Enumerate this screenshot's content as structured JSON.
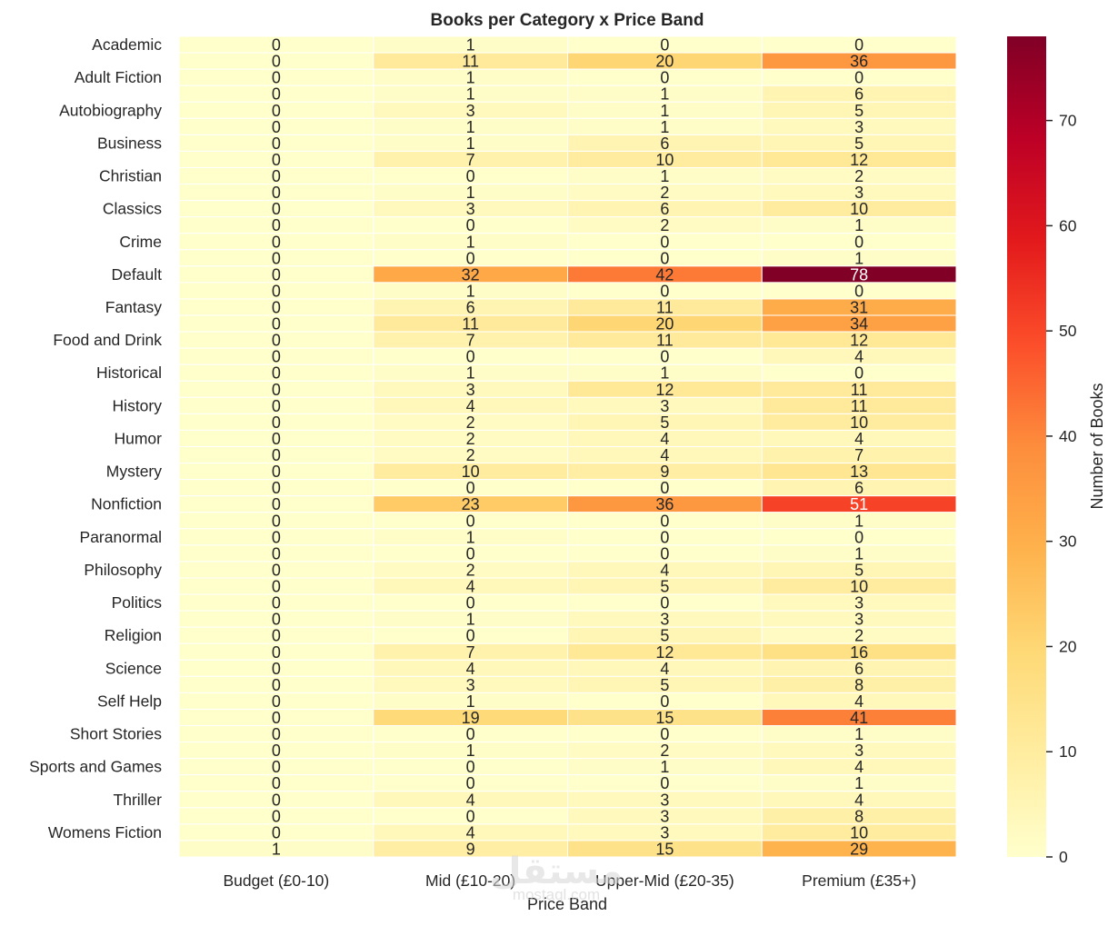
{
  "chart_data": {
    "type": "heatmap",
    "title": "Books per Category x Price Band",
    "xlabel": "Price Band",
    "ylabel": "",
    "colorbar_label": "Number of Books",
    "colormap": "YlOrRd",
    "value_range": [
      0,
      78
    ],
    "colorbar_ticks": [
      0,
      10,
      20,
      30,
      40,
      50,
      60,
      70
    ],
    "x_categories": [
      "Budget (£0-10)",
      "Mid (£10-20)",
      "Upper-Mid (£20-35)",
      "Premium (£35+)"
    ],
    "y_tick_labels": [
      "Academic",
      "",
      "Adult Fiction",
      "",
      "Autobiography",
      "",
      "Business",
      "",
      "Christian",
      "",
      "Classics",
      "",
      "Crime",
      "",
      "Default",
      "",
      "Fantasy",
      "",
      "Food and Drink",
      "",
      "Historical",
      "",
      "History",
      "",
      "Humor",
      "",
      "Mystery",
      "",
      "Nonfiction",
      "",
      "Paranormal",
      "",
      "Philosophy",
      "",
      "Politics",
      "",
      "Religion",
      "",
      "Science",
      "",
      "Self Help",
      "",
      "Short Stories",
      "",
      "Sports and Games",
      "",
      "Thriller",
      "",
      "Womens Fiction",
      ""
    ],
    "values": [
      [
        0,
        1,
        0,
        0
      ],
      [
        0,
        11,
        20,
        36
      ],
      [
        0,
        1,
        0,
        0
      ],
      [
        0,
        1,
        1,
        6
      ],
      [
        0,
        3,
        1,
        5
      ],
      [
        0,
        1,
        1,
        3
      ],
      [
        0,
        1,
        6,
        5
      ],
      [
        0,
        7,
        10,
        12
      ],
      [
        0,
        0,
        1,
        2
      ],
      [
        0,
        1,
        2,
        3
      ],
      [
        0,
        3,
        6,
        10
      ],
      [
        0,
        0,
        2,
        1
      ],
      [
        0,
        1,
        0,
        0
      ],
      [
        0,
        0,
        0,
        1
      ],
      [
        0,
        32,
        42,
        78
      ],
      [
        0,
        1,
        0,
        0
      ],
      [
        0,
        6,
        11,
        31
      ],
      [
        0,
        11,
        20,
        34
      ],
      [
        0,
        7,
        11,
        12
      ],
      [
        0,
        0,
        0,
        4
      ],
      [
        0,
        1,
        1,
        0
      ],
      [
        0,
        3,
        12,
        11
      ],
      [
        0,
        4,
        3,
        11
      ],
      [
        0,
        2,
        5,
        10
      ],
      [
        0,
        2,
        4,
        4
      ],
      [
        0,
        2,
        4,
        7
      ],
      [
        0,
        10,
        9,
        13
      ],
      [
        0,
        0,
        0,
        6
      ],
      [
        0,
        23,
        36,
        51
      ],
      [
        0,
        0,
        0,
        1
      ],
      [
        0,
        1,
        0,
        0
      ],
      [
        0,
        0,
        0,
        1
      ],
      [
        0,
        2,
        4,
        5
      ],
      [
        0,
        4,
        5,
        10
      ],
      [
        0,
        0,
        0,
        3
      ],
      [
        0,
        1,
        3,
        3
      ],
      [
        0,
        0,
        5,
        2
      ],
      [
        0,
        7,
        12,
        16
      ],
      [
        0,
        4,
        4,
        6
      ],
      [
        0,
        3,
        5,
        8
      ],
      [
        0,
        1,
        0,
        4
      ],
      [
        0,
        19,
        15,
        41
      ],
      [
        0,
        0,
        0,
        1
      ],
      [
        0,
        1,
        2,
        3
      ],
      [
        0,
        0,
        1,
        4
      ],
      [
        0,
        0,
        0,
        1
      ],
      [
        0,
        4,
        3,
        4
      ],
      [
        0,
        0,
        3,
        8
      ],
      [
        0,
        4,
        3,
        10
      ],
      [
        1,
        9,
        15,
        29
      ]
    ],
    "annotations": true,
    "grid": false
  },
  "watermark": {
    "text": "مستقل",
    "subtext": "mostaql.com"
  }
}
